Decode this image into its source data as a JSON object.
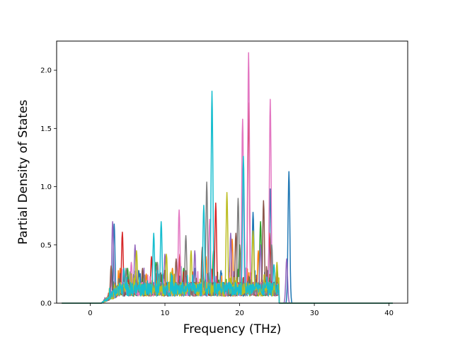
{
  "chart_data": {
    "type": "line",
    "title": "",
    "xlabel": "Frequency (THz)",
    "ylabel": "Partial Density of States",
    "xlim": [
      -4.5,
      42.5
    ],
    "ylim": [
      0,
      2.25
    ],
    "x_ticks": [
      0,
      10,
      20,
      30,
      40
    ],
    "x_tick_labels": [
      "0",
      "10",
      "20",
      "30",
      "40"
    ],
    "y_ticks": [
      0.0,
      0.5,
      1.0,
      1.5,
      2.0
    ],
    "y_tick_labels": [
      "0.0",
      "0.5",
      "1.0",
      "1.5",
      "2.0"
    ],
    "grid": false,
    "legend": "none",
    "x_data_range": [
      -3.8,
      40.5
    ],
    "colors": [
      "#1f77b4",
      "#ff7f0e",
      "#2ca02c",
      "#d62728",
      "#9467bd",
      "#8c564b",
      "#e377c2",
      "#7f7f7f",
      "#bcbd22",
      "#17becf"
    ],
    "series": [
      {
        "color": "#1f77b4",
        "peaks": [
          [
            3.2,
            0.68
          ],
          [
            6.5,
            0.28
          ],
          [
            9.5,
            0.22
          ],
          [
            14.0,
            0.3
          ],
          [
            17.5,
            0.28
          ],
          [
            21.8,
            0.78
          ],
          [
            24.1,
            0.98
          ],
          [
            26.6,
            1.13
          ]
        ]
      },
      {
        "color": "#ff7f0e",
        "peaks": [
          [
            4.0,
            0.3
          ],
          [
            7.5,
            0.25
          ],
          [
            11.0,
            0.3
          ],
          [
            15.5,
            0.4
          ],
          [
            19.0,
            0.55
          ],
          [
            22.5,
            0.45
          ],
          [
            25.0,
            0.25
          ]
        ]
      },
      {
        "color": "#2ca02c",
        "peaks": [
          [
            5.0,
            0.3
          ],
          [
            8.8,
            0.35
          ],
          [
            12.5,
            0.3
          ],
          [
            16.5,
            0.45
          ],
          [
            20.0,
            0.5
          ],
          [
            22.8,
            0.7
          ],
          [
            25.0,
            0.3
          ]
        ]
      },
      {
        "color": "#d62728",
        "peaks": [
          [
            4.3,
            0.61
          ],
          [
            8.2,
            0.4
          ],
          [
            12.0,
            0.42
          ],
          [
            16.8,
            0.86
          ],
          [
            21.2,
            1.72
          ],
          [
            24.0,
            0.6
          ]
        ]
      },
      {
        "color": "#9467bd",
        "peaks": [
          [
            3.0,
            0.7
          ],
          [
            6.0,
            0.5
          ],
          [
            10.0,
            0.42
          ],
          [
            14.0,
            0.45
          ],
          [
            18.8,
            0.6
          ],
          [
            22.8,
            0.5
          ],
          [
            26.3,
            0.38
          ]
        ]
      },
      {
        "color": "#8c564b",
        "peaks": [
          [
            2.8,
            0.32
          ],
          [
            7.0,
            0.3
          ],
          [
            11.5,
            0.38
          ],
          [
            15.0,
            0.48
          ],
          [
            19.5,
            0.6
          ],
          [
            23.2,
            0.88
          ]
        ]
      },
      {
        "color": "#e377c2",
        "peaks": [
          [
            5.5,
            0.35
          ],
          [
            11.9,
            0.8
          ],
          [
            16.0,
            0.72
          ],
          [
            20.4,
            1.58
          ],
          [
            21.2,
            2.15
          ],
          [
            24.1,
            1.75
          ]
        ]
      },
      {
        "color": "#7f7f7f",
        "peaks": [
          [
            4.8,
            0.3
          ],
          [
            9.0,
            0.35
          ],
          [
            12.8,
            0.58
          ],
          [
            15.6,
            1.04
          ],
          [
            19.8,
            0.9
          ],
          [
            24.3,
            0.5
          ]
        ]
      },
      {
        "color": "#bcbd22",
        "peaks": [
          [
            6.2,
            0.45
          ],
          [
            10.2,
            0.42
          ],
          [
            13.5,
            0.45
          ],
          [
            18.3,
            0.95
          ],
          [
            21.8,
            0.62
          ],
          [
            25.0,
            0.35
          ]
        ]
      },
      {
        "color": "#17becf",
        "peaks": [
          [
            4.5,
            0.3
          ],
          [
            8.5,
            0.6
          ],
          [
            9.5,
            0.7
          ],
          [
            15.2,
            0.84
          ],
          [
            16.3,
            1.82
          ],
          [
            20.5,
            1.26
          ],
          [
            24.6,
            0.33
          ]
        ]
      }
    ]
  }
}
